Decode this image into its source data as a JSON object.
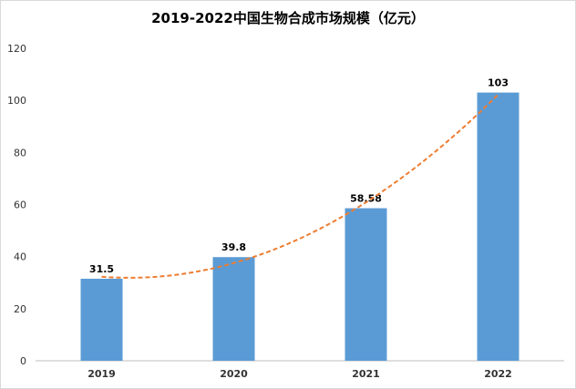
{
  "chart_data": {
    "type": "bar",
    "title": "2019-2022中国生物合成市场规模（亿元）",
    "categories": [
      "2019",
      "2020",
      "2021",
      "2022"
    ],
    "series": [
      {
        "values": [
          31.5,
          39.8,
          58.58,
          103
        ],
        "color": "#5b9bd5"
      }
    ],
    "data_labels": [
      "31.5",
      "39.8",
      "58.58",
      "103"
    ],
    "trendline": {
      "type": "polynomial",
      "style": "dashed",
      "color": "#ed7d31"
    },
    "ylim": [
      0,
      120
    ],
    "yticks": [
      0,
      20,
      40,
      60,
      80,
      100,
      120
    ],
    "grid": false,
    "legend": "none"
  }
}
